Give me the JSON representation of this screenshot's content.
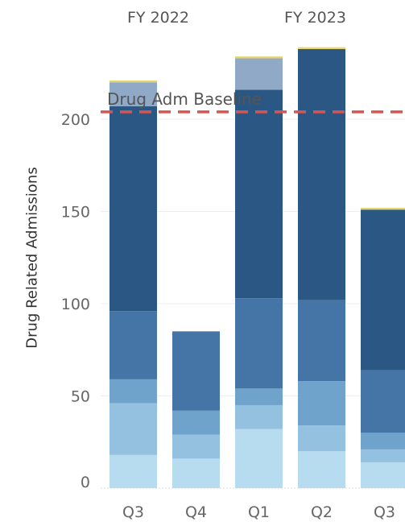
{
  "chart_data": {
    "type": "bar",
    "stacked": true,
    "ylabel": "Drug Related Admissions",
    "ylim": [
      0,
      227
    ],
    "yticks": [
      0,
      50,
      100,
      150,
      200
    ],
    "fiscal_years": [
      {
        "label": "FY 2022",
        "quarters": [
          "Q3",
          "Q4"
        ]
      },
      {
        "label": "FY 2023",
        "quarters": [
          "Q1",
          "Q2",
          "Q3"
        ]
      }
    ],
    "categories": [
      "Q3",
      "Q4",
      "Q1",
      "Q2",
      "Q3"
    ],
    "series": [
      {
        "color": "#b8dcef",
        "values": [
          18,
          16,
          32,
          20,
          14
        ]
      },
      {
        "color": "#93c1df",
        "values": [
          28,
          13,
          13,
          14,
          7
        ]
      },
      {
        "color": "#6fa3cb",
        "values": [
          13,
          13,
          9,
          24,
          9
        ]
      },
      {
        "color": "#4575a6",
        "values": [
          37,
          43,
          49,
          44,
          34
        ]
      },
      {
        "color": "#2a5783",
        "values": [
          111,
          0,
          113,
          136,
          87
        ]
      },
      {
        "color": "#8fa9c6",
        "values": [
          13,
          0,
          17,
          0,
          0
        ]
      },
      {
        "color": "#e6d36b",
        "values": [
          1,
          0,
          1,
          1,
          1
        ]
      }
    ],
    "reference_line": {
      "label": "Drug Adm Baseline",
      "value": 204,
      "color": "#d9534f"
    }
  }
}
